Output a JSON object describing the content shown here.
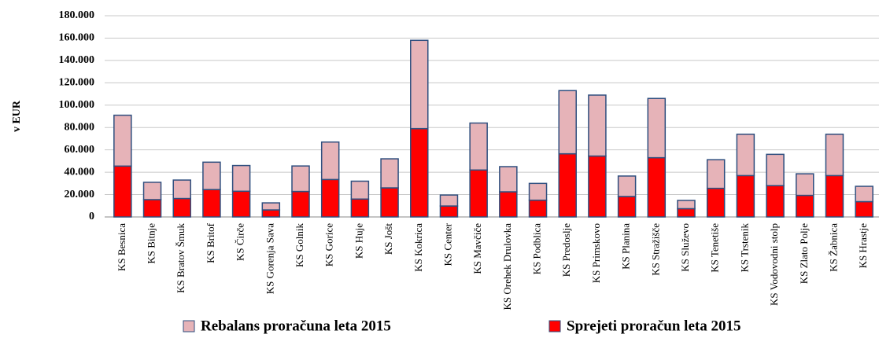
{
  "chart_data": {
    "type": "stacked_bar",
    "y_label": "v EUR",
    "categories": [
      "KS Besnica",
      "KS Bitnje",
      "KS Bratov Šmuk",
      "KS Britof",
      "KS Čirče",
      "KS Gorenja Sava",
      "KS Golnik",
      "KS Gorice",
      "KS Huje",
      "KS Jošt",
      "KS Kokrica",
      "KS Center",
      "KS Mavčiče",
      "KS Orehek Drulovka",
      "KS Podblica",
      "KS Predoslje",
      "KS Primskovo",
      "KS Planina",
      "KS Stražišče",
      "KS Služevo",
      "KS Tenetiše",
      "KS Trstenik",
      "KS Vodovodni stolp",
      "KS Zlato Polje",
      "KS Žabnica",
      "KS Hrastje"
    ],
    "series": [
      {
        "name": "Rebalans proračuna leta 2015",
        "color": "#e6b3b8",
        "values": [
          45500,
          15500,
          16500,
          24500,
          23000,
          6300,
          22800,
          33500,
          16000,
          26000,
          79000,
          9800,
          42000,
          22500,
          15000,
          56500,
          54500,
          18300,
          53000,
          7400,
          25600,
          37000,
          28000,
          19300,
          37000,
          13700
        ]
      },
      {
        "name": "Sprejeti proračun leta 2015",
        "color": "#ff0000",
        "values": [
          45500,
          15500,
          16500,
          24500,
          23000,
          6300,
          22800,
          33500,
          16000,
          26000,
          79000,
          9800,
          42000,
          22500,
          15000,
          56500,
          54500,
          18300,
          53000,
          7400,
          25600,
          37000,
          28000,
          19300,
          37000,
          13700
        ]
      }
    ],
    "ylim": [
      0,
      180000
    ],
    "yticks": [
      0,
      {
        "value": 20000,
        "label": "20.000"
      },
      {
        "value": 40000,
        "label": "40.000"
      },
      {
        "value": 60000,
        "label": "60.000"
      },
      {
        "value": 80000,
        "label": "80.000"
      },
      {
        "value": 100000,
        "label": "100.000"
      },
      {
        "value": 120000,
        "label": "120.000"
      },
      {
        "value": 140000,
        "label": "140.000"
      },
      {
        "value": 160000,
        "label": "160.000"
      },
      {
        "value": 180000,
        "label": "180.000"
      }
    ],
    "grid": true,
    "legend": "bottom"
  }
}
